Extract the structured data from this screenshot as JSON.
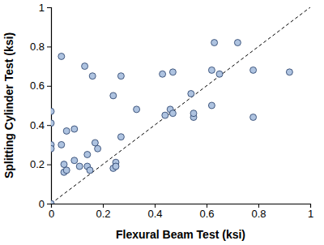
{
  "chart_data": {
    "type": "scatter",
    "xlabel": "Flexural Beam Test (ksi)",
    "ylabel": "Splitting Cylinder Test (ksi)",
    "x": [
      0,
      0,
      0,
      0,
      0,
      0.04,
      0.04,
      0.05,
      0.05,
      0.06,
      0.06,
      0.09,
      0.09,
      0.11,
      0.13,
      0.14,
      0.14,
      0.15,
      0.16,
      0.17,
      0.18,
      0.24,
      0.24,
      0.25,
      0.25,
      0.27,
      0.27,
      0.33,
      0.43,
      0.44,
      0.46,
      0.47,
      0.47,
      0.54,
      0.55,
      0.55,
      0.62,
      0.62,
      0.63,
      0.65,
      0.72,
      0.78,
      0.78,
      0.92
    ],
    "values": [
      0.47,
      0.41,
      0.3,
      0.28,
      0.0,
      0.75,
      0.3,
      0.2,
      0.16,
      0.37,
      0.17,
      0.22,
      0.38,
      0.19,
      0.7,
      0.19,
      0.25,
      0.17,
      0.65,
      0.31,
      0.28,
      0.55,
      0.18,
      0.21,
      0.19,
      0.65,
      0.34,
      0.48,
      0.66,
      0.45,
      0.48,
      0.46,
      0.67,
      0.56,
      0.44,
      0.46,
      0.68,
      0.5,
      0.82,
      0.66,
      0.82,
      0.68,
      0.44,
      0.67
    ],
    "color": "#aec3e0",
    "marker": "circle",
    "reference_line": {
      "x": [
        0,
        1
      ],
      "values": [
        0,
        1
      ],
      "line_style": "dashed",
      "color": "#000000"
    },
    "xlim": [
      0,
      1
    ],
    "ylim": [
      0,
      1
    ],
    "xticks": [
      0,
      0.2,
      0.4,
      0.6,
      0.8,
      1
    ],
    "yticks": [
      0,
      0.2,
      0.4,
      0.6,
      0.8,
      1
    ],
    "grid": false
  }
}
